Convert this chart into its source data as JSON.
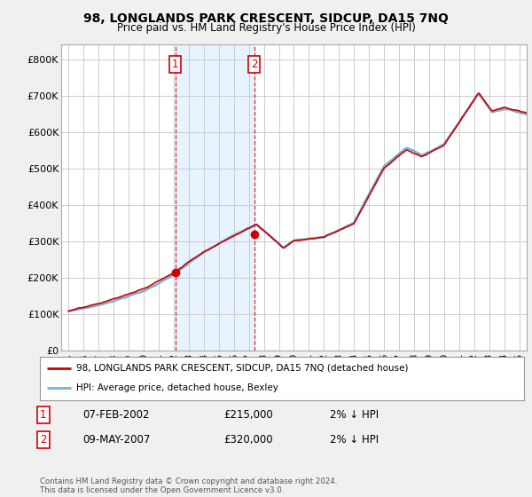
{
  "title": "98, LONGLANDS PARK CRESCENT, SIDCUP, DA15 7NQ",
  "subtitle": "Price paid vs. HM Land Registry's House Price Index (HPI)",
  "ylabel_ticks": [
    "£0",
    "£100K",
    "£200K",
    "£300K",
    "£400K",
    "£500K",
    "£600K",
    "£700K",
    "£800K"
  ],
  "ytick_values": [
    0,
    100000,
    200000,
    300000,
    400000,
    500000,
    600000,
    700000,
    800000
  ],
  "ylim": [
    0,
    840000
  ],
  "xlim_start": 1994.5,
  "xlim_end": 2025.5,
  "hpi_color": "#7ab0d4",
  "price_color": "#cc0000",
  "bg_color": "#f0f0f0",
  "plot_bg": "#ffffff",
  "grid_color": "#cccccc",
  "span_color": "#ddeeff",
  "sale1_year": 2002.1,
  "sale1_price": 215000,
  "sale2_year": 2007.35,
  "sale2_price": 320000,
  "legend_line1": "98, LONGLANDS PARK CRESCENT, SIDCUP, DA15 7NQ (detached house)",
  "legend_line2": "HPI: Average price, detached house, Bexley",
  "table_row1_num": "1",
  "table_row1_date": "07-FEB-2002",
  "table_row1_price": "£215,000",
  "table_row1_hpi": "2% ↓ HPI",
  "table_row2_num": "2",
  "table_row2_date": "09-MAY-2007",
  "table_row2_price": "£320,000",
  "table_row2_hpi": "2% ↓ HPI",
  "footnote": "Contains HM Land Registry data © Crown copyright and database right 2024.\nThis data is licensed under the Open Government Licence v3.0.",
  "xticks": [
    1995,
    1996,
    1997,
    1998,
    1999,
    2000,
    2001,
    2002,
    2003,
    2004,
    2005,
    2006,
    2007,
    2008,
    2009,
    2010,
    2011,
    2012,
    2013,
    2014,
    2015,
    2016,
    2017,
    2018,
    2019,
    2020,
    2021,
    2022,
    2023,
    2024,
    2025
  ]
}
